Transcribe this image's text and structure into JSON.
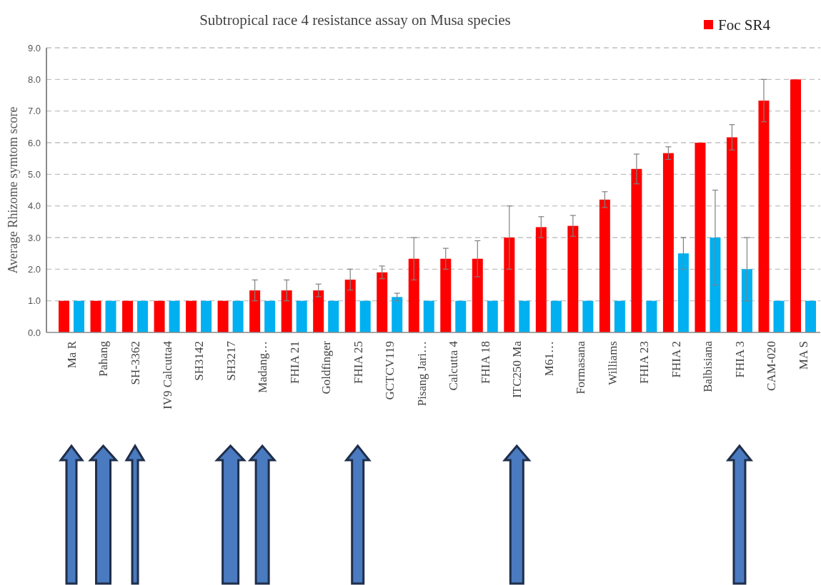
{
  "chart_data": {
    "type": "bar",
    "title": "Subtropical race 4 resistance  assay on Musa species",
    "ylabel": "Average  Rhizome symtom score",
    "categories": [
      "Ma R",
      "Pahang",
      "SH-3362",
      "IV9 Calcutta4",
      "SH3142",
      "SH3217",
      "Madang…",
      "FHIA 21",
      "Goldfinger",
      "FHIA 25",
      "GCTCV119",
      "Pisang Jari…",
      "Calcutta 4",
      "FHIA 18",
      "ITC250 Ma",
      "M61…",
      "Formasana",
      "Williams",
      "FHIA 23",
      "FHIA 2",
      "Balbisiana",
      "FHIA 3",
      "CAM-020",
      "MA S"
    ],
    "series": [
      {
        "name": "Foc SR4",
        "color": "#ff0000",
        "values": [
          1,
          1,
          1,
          1,
          1,
          1,
          1.33,
          1.33,
          1.33,
          1.67,
          1.9,
          2.33,
          2.33,
          2.33,
          3,
          3.33,
          3.37,
          4.2,
          5.17,
          5.67,
          6,
          6.17,
          7.33,
          8
        ],
        "errors": [
          null,
          null,
          null,
          null,
          null,
          null,
          0.33,
          0.33,
          0.2,
          0.33,
          0.2,
          0.67,
          0.33,
          0.57,
          1,
          0.33,
          0.33,
          0.25,
          0.47,
          0.2,
          null,
          0.4,
          0.67,
          null
        ]
      },
      {
        "color": "#00b0f0",
        "values": [
          1,
          1,
          1,
          1,
          1,
          1,
          1,
          1,
          1,
          1,
          1.12,
          1,
          1,
          1,
          1,
          1,
          1,
          1,
          1,
          2.5,
          3,
          2,
          1,
          1
        ],
        "errors": [
          null,
          null,
          null,
          null,
          null,
          null,
          null,
          null,
          null,
          null,
          0.12,
          null,
          null,
          null,
          null,
          null,
          null,
          null,
          null,
          0.5,
          1.5,
          1,
          null,
          null
        ]
      }
    ],
    "ylim": [
      0,
      9
    ],
    "yticks": [
      {
        "value": 0,
        "label": "0.0"
      },
      {
        "value": 1,
        "label": "1.0"
      },
      {
        "value": 2,
        "label": "2.0"
      },
      {
        "value": 3,
        "label": "3.0"
      },
      {
        "value": 4,
        "label": "4.0"
      },
      {
        "value": 5,
        "label": "5.0"
      },
      {
        "value": 6,
        "label": "6.0"
      },
      {
        "value": 7,
        "label": "7.0"
      },
      {
        "value": 8,
        "label": "8.0"
      },
      {
        "value": 9,
        "label": "9.0"
      }
    ],
    "grid": "y",
    "legend": "top right"
  }
}
